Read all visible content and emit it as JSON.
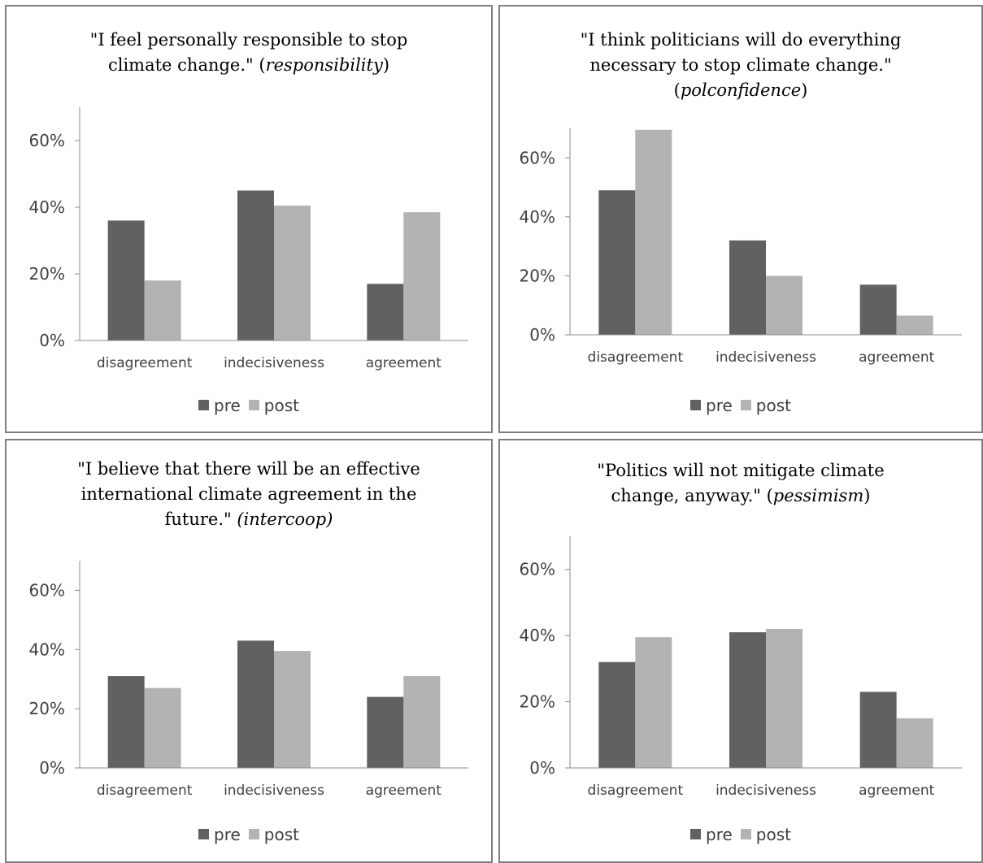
{
  "chart_data": [
    {
      "type": "bar",
      "title_lines": [
        [
          {
            "t": "\"I feel personally responsible to stop"
          }
        ],
        [
          {
            "t": "climate change.\" ("
          },
          {
            "t": "responsibility",
            "i": true
          },
          {
            "t": ")"
          }
        ]
      ],
      "categories": [
        "disagreement",
        "indecisiveness",
        "agreement"
      ],
      "series": [
        {
          "name": "pre",
          "values": [
            36,
            45,
            17
          ]
        },
        {
          "name": "post",
          "values": [
            18,
            40.5,
            38.5
          ]
        }
      ],
      "yticks": [
        "0%",
        "20%",
        "40%",
        "60%"
      ],
      "ylim": [
        0,
        70
      ],
      "legend": "bottom",
      "grid": false
    },
    {
      "type": "bar",
      "title_lines": [
        [
          {
            "t": "\"I think politicians will do everything"
          }
        ],
        [
          {
            "t": "necessary to stop climate change.\""
          }
        ],
        [
          {
            "t": "("
          },
          {
            "t": "polconfidence",
            "i": true
          },
          {
            "t": ")"
          }
        ]
      ],
      "categories": [
        "disagreement",
        "indecisiveness",
        "agreement"
      ],
      "series": [
        {
          "name": "pre",
          "values": [
            49,
            32,
            17
          ]
        },
        {
          "name": "post",
          "values": [
            69.5,
            20,
            6.5
          ]
        }
      ],
      "yticks": [
        "0%",
        "20%",
        "40%",
        "60%"
      ],
      "ylim": [
        0,
        70
      ],
      "legend": "bottom",
      "grid": false
    },
    {
      "type": "bar",
      "title_lines": [
        [
          {
            "t": "\"I believe that there will be an effective"
          }
        ],
        [
          {
            "t": "international climate agreement in the"
          }
        ],
        [
          {
            "t": "future.\" "
          },
          {
            "t": "(intercoop)",
            "i": true
          }
        ]
      ],
      "categories": [
        "disagreement",
        "indecisiveness",
        "agreement"
      ],
      "series": [
        {
          "name": "pre",
          "values": [
            31,
            43,
            24
          ]
        },
        {
          "name": "post",
          "values": [
            27,
            39.5,
            31
          ]
        }
      ],
      "yticks": [
        "0%",
        "20%",
        "40%",
        "60%"
      ],
      "ylim": [
        0,
        70
      ],
      "legend": "bottom",
      "grid": false
    },
    {
      "type": "bar",
      "title_lines": [
        [
          {
            "t": "\"Politics will not mitigate climate"
          }
        ],
        [
          {
            "t": "change, anyway.\" ("
          },
          {
            "t": "pessimism",
            "i": true
          },
          {
            "t": ")"
          }
        ]
      ],
      "categories": [
        "disagreement",
        "indecisiveness",
        "agreement"
      ],
      "series": [
        {
          "name": "pre",
          "values": [
            32,
            41,
            23
          ]
        },
        {
          "name": "post",
          "values": [
            39.5,
            42,
            15
          ]
        }
      ],
      "yticks": [
        "0%",
        "20%",
        "40%",
        "60%"
      ],
      "ylim": [
        0,
        70
      ],
      "legend": "bottom",
      "grid": false
    }
  ],
  "colors": {
    "pre": "#616161",
    "post": "#b3b3b3",
    "axis": "#8c8c8c",
    "panel_border": "#7f7f7f"
  }
}
